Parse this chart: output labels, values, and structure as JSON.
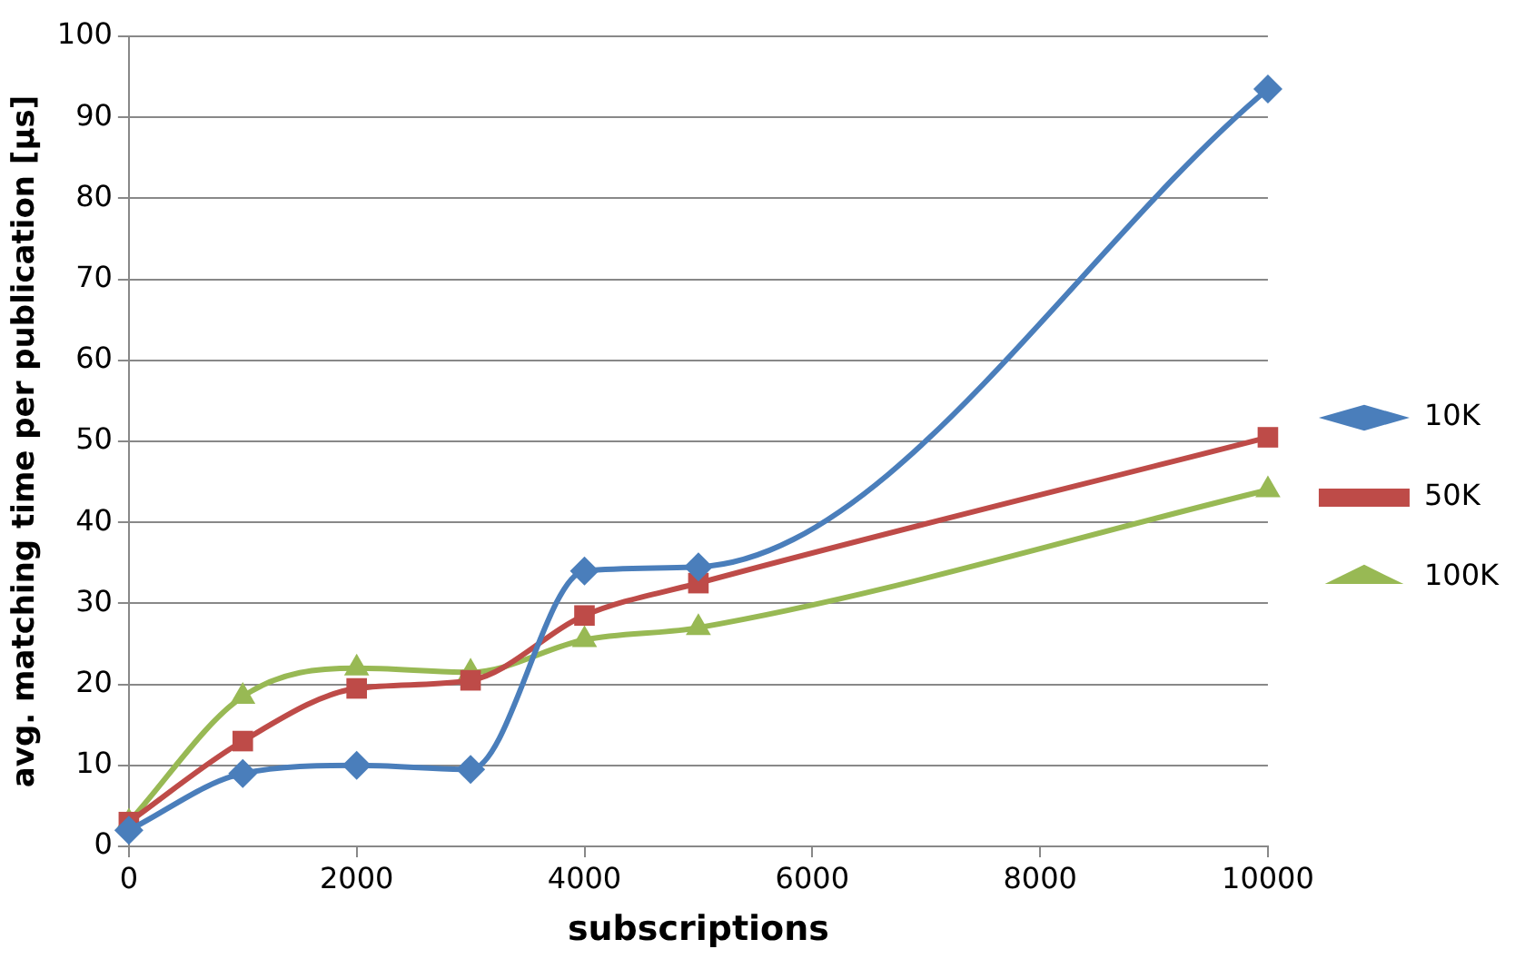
{
  "chart_data": {
    "type": "line",
    "xlabel": "subscriptions",
    "ylabel": "avg. matching time per publication [µs]",
    "x": [
      0,
      1000,
      2000,
      3000,
      4000,
      5000,
      10000
    ],
    "series": [
      {
        "name": "10K",
        "color": "#4a7ebb",
        "marker": "diamond",
        "values": [
          2,
          9,
          10,
          9.5,
          34,
          34.5,
          93.5
        ]
      },
      {
        "name": "50K",
        "color": "#be4b48",
        "marker": "square",
        "values": [
          3,
          13,
          19.5,
          20.5,
          28.5,
          32.5,
          50.5
        ]
      },
      {
        "name": "100K",
        "color": "#98b954",
        "marker": "triangle",
        "values": [
          3,
          18.5,
          22,
          21.5,
          25.5,
          27,
          44
        ]
      }
    ],
    "xlim": [
      0,
      10000
    ],
    "xticks": [
      0,
      2000,
      4000,
      6000,
      8000,
      10000
    ],
    "ylim": [
      0,
      100
    ],
    "yticks": [
      0,
      10,
      20,
      30,
      40,
      50,
      60,
      70,
      80,
      90,
      100
    ],
    "grid": "y",
    "legend": "right",
    "line_style": "solid"
  }
}
